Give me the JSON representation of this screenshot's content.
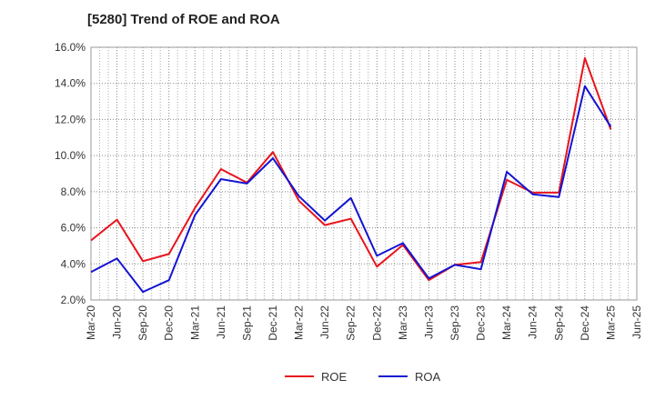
{
  "chart_data": {
    "type": "line",
    "title": "[5280]  Trend of ROE and ROA",
    "xlabel": "",
    "ylabel": "",
    "x": [
      "Mar-20",
      "Jun-20",
      "Sep-20",
      "Dec-20",
      "Mar-21",
      "Jun-21",
      "Sep-21",
      "Dec-21",
      "Mar-22",
      "Jun-22",
      "Sep-22",
      "Dec-22",
      "Mar-23",
      "Jun-23",
      "Sep-23",
      "Dec-23",
      "Mar-24",
      "Jun-24",
      "Sep-24",
      "Dec-24",
      "Mar-25",
      "Jun-25"
    ],
    "ylim": [
      2.0,
      16.0
    ],
    "yticks": [
      2.0,
      4.0,
      6.0,
      8.0,
      10.0,
      12.0,
      14.0,
      16.0
    ],
    "ytick_labels": [
      "2.0%",
      "4.0%",
      "6.0%",
      "8.0%",
      "10.0%",
      "12.0%",
      "14.0%",
      "16.0%"
    ],
    "grid": true,
    "legend_position": "bottom-center",
    "series": [
      {
        "name": "ROE",
        "color": "#e8141c",
        "values": [
          5.3,
          6.45,
          4.15,
          4.55,
          7.1,
          9.25,
          8.5,
          10.2,
          7.5,
          6.15,
          6.5,
          3.85,
          5.05,
          3.1,
          3.95,
          4.1,
          8.65,
          7.95,
          7.95,
          15.4,
          11.45,
          null
        ]
      },
      {
        "name": "ROA",
        "color": "#1414d2",
        "values": [
          3.55,
          4.3,
          2.45,
          3.1,
          6.7,
          8.7,
          8.45,
          9.85,
          7.75,
          6.4,
          7.65,
          4.45,
          5.15,
          3.2,
          3.95,
          3.7,
          9.1,
          7.85,
          7.7,
          13.85,
          11.6,
          null
        ]
      }
    ]
  }
}
